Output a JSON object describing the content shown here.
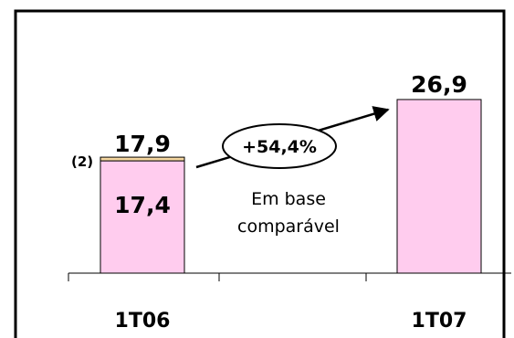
{
  "chart_data": {
    "type": "bar",
    "categories": [
      "1T06",
      "1T07"
    ],
    "series": [
      {
        "values": [
          17.4,
          26.9
        ]
      },
      {
        "values": [
          0.5,
          0
        ]
      }
    ],
    "totals": [
      "17,9",
      "26,9"
    ],
    "segment_labels": {
      "base_1T06": "17,4",
      "adjustment_1T06": "(2)"
    },
    "annotation": {
      "growth": "+54,4%",
      "note_line1": "Em base",
      "note_line2": "comparável"
    },
    "ylim": [
      0,
      30
    ],
    "grid": false,
    "colors": {
      "base": "#ffccee",
      "adjustment": "#f5d7a0",
      "bar_border": "#000000",
      "frame": "#000000"
    }
  }
}
